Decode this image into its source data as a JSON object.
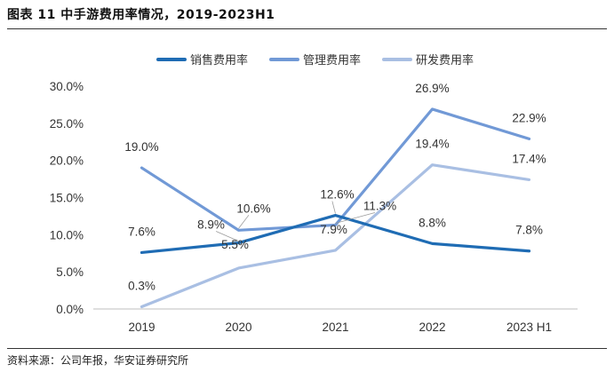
{
  "title": "图表 11  中手游费用率情况，2019-2023H1",
  "source": "资料来源：公司年报，华安证券研究所",
  "colors": {
    "sales": "#1f6cb4",
    "admin": "#7199d6",
    "rnd": "#a9bfe3",
    "axis": "#bfbfbf",
    "text": "#333333"
  },
  "chart_data": {
    "type": "line",
    "categories": [
      "2019",
      "2020",
      "2021",
      "2022",
      "2023 H1"
    ],
    "ylim": [
      0,
      30
    ],
    "yticks": [
      "0.0%",
      "5.0%",
      "10.0%",
      "15.0%",
      "20.0%",
      "25.0%",
      "30.0%"
    ],
    "ytick_values": [
      0,
      5,
      10,
      15,
      20,
      25,
      30
    ],
    "grid": false,
    "legend_position": "top-center",
    "series": [
      {
        "name": "销售费用率",
        "key": "sales",
        "values": [
          7.6,
          8.9,
          12.6,
          8.8,
          7.8
        ],
        "labels": [
          "7.6%",
          "8.9%",
          "12.6%",
          "8.8%",
          "7.8%"
        ]
      },
      {
        "name": "管理费用率",
        "key": "admin",
        "values": [
          19.0,
          10.6,
          11.3,
          26.9,
          22.9
        ],
        "labels": [
          "19.0%",
          "10.6%",
          "11.3%",
          "26.9%",
          "22.9%"
        ]
      },
      {
        "name": "研发费用率",
        "key": "rnd",
        "values": [
          0.3,
          5.5,
          7.9,
          19.4,
          17.4
        ],
        "labels": [
          "0.3%",
          "5.5%",
          "7.9%",
          "19.4%",
          "17.4%"
        ]
      }
    ]
  }
}
